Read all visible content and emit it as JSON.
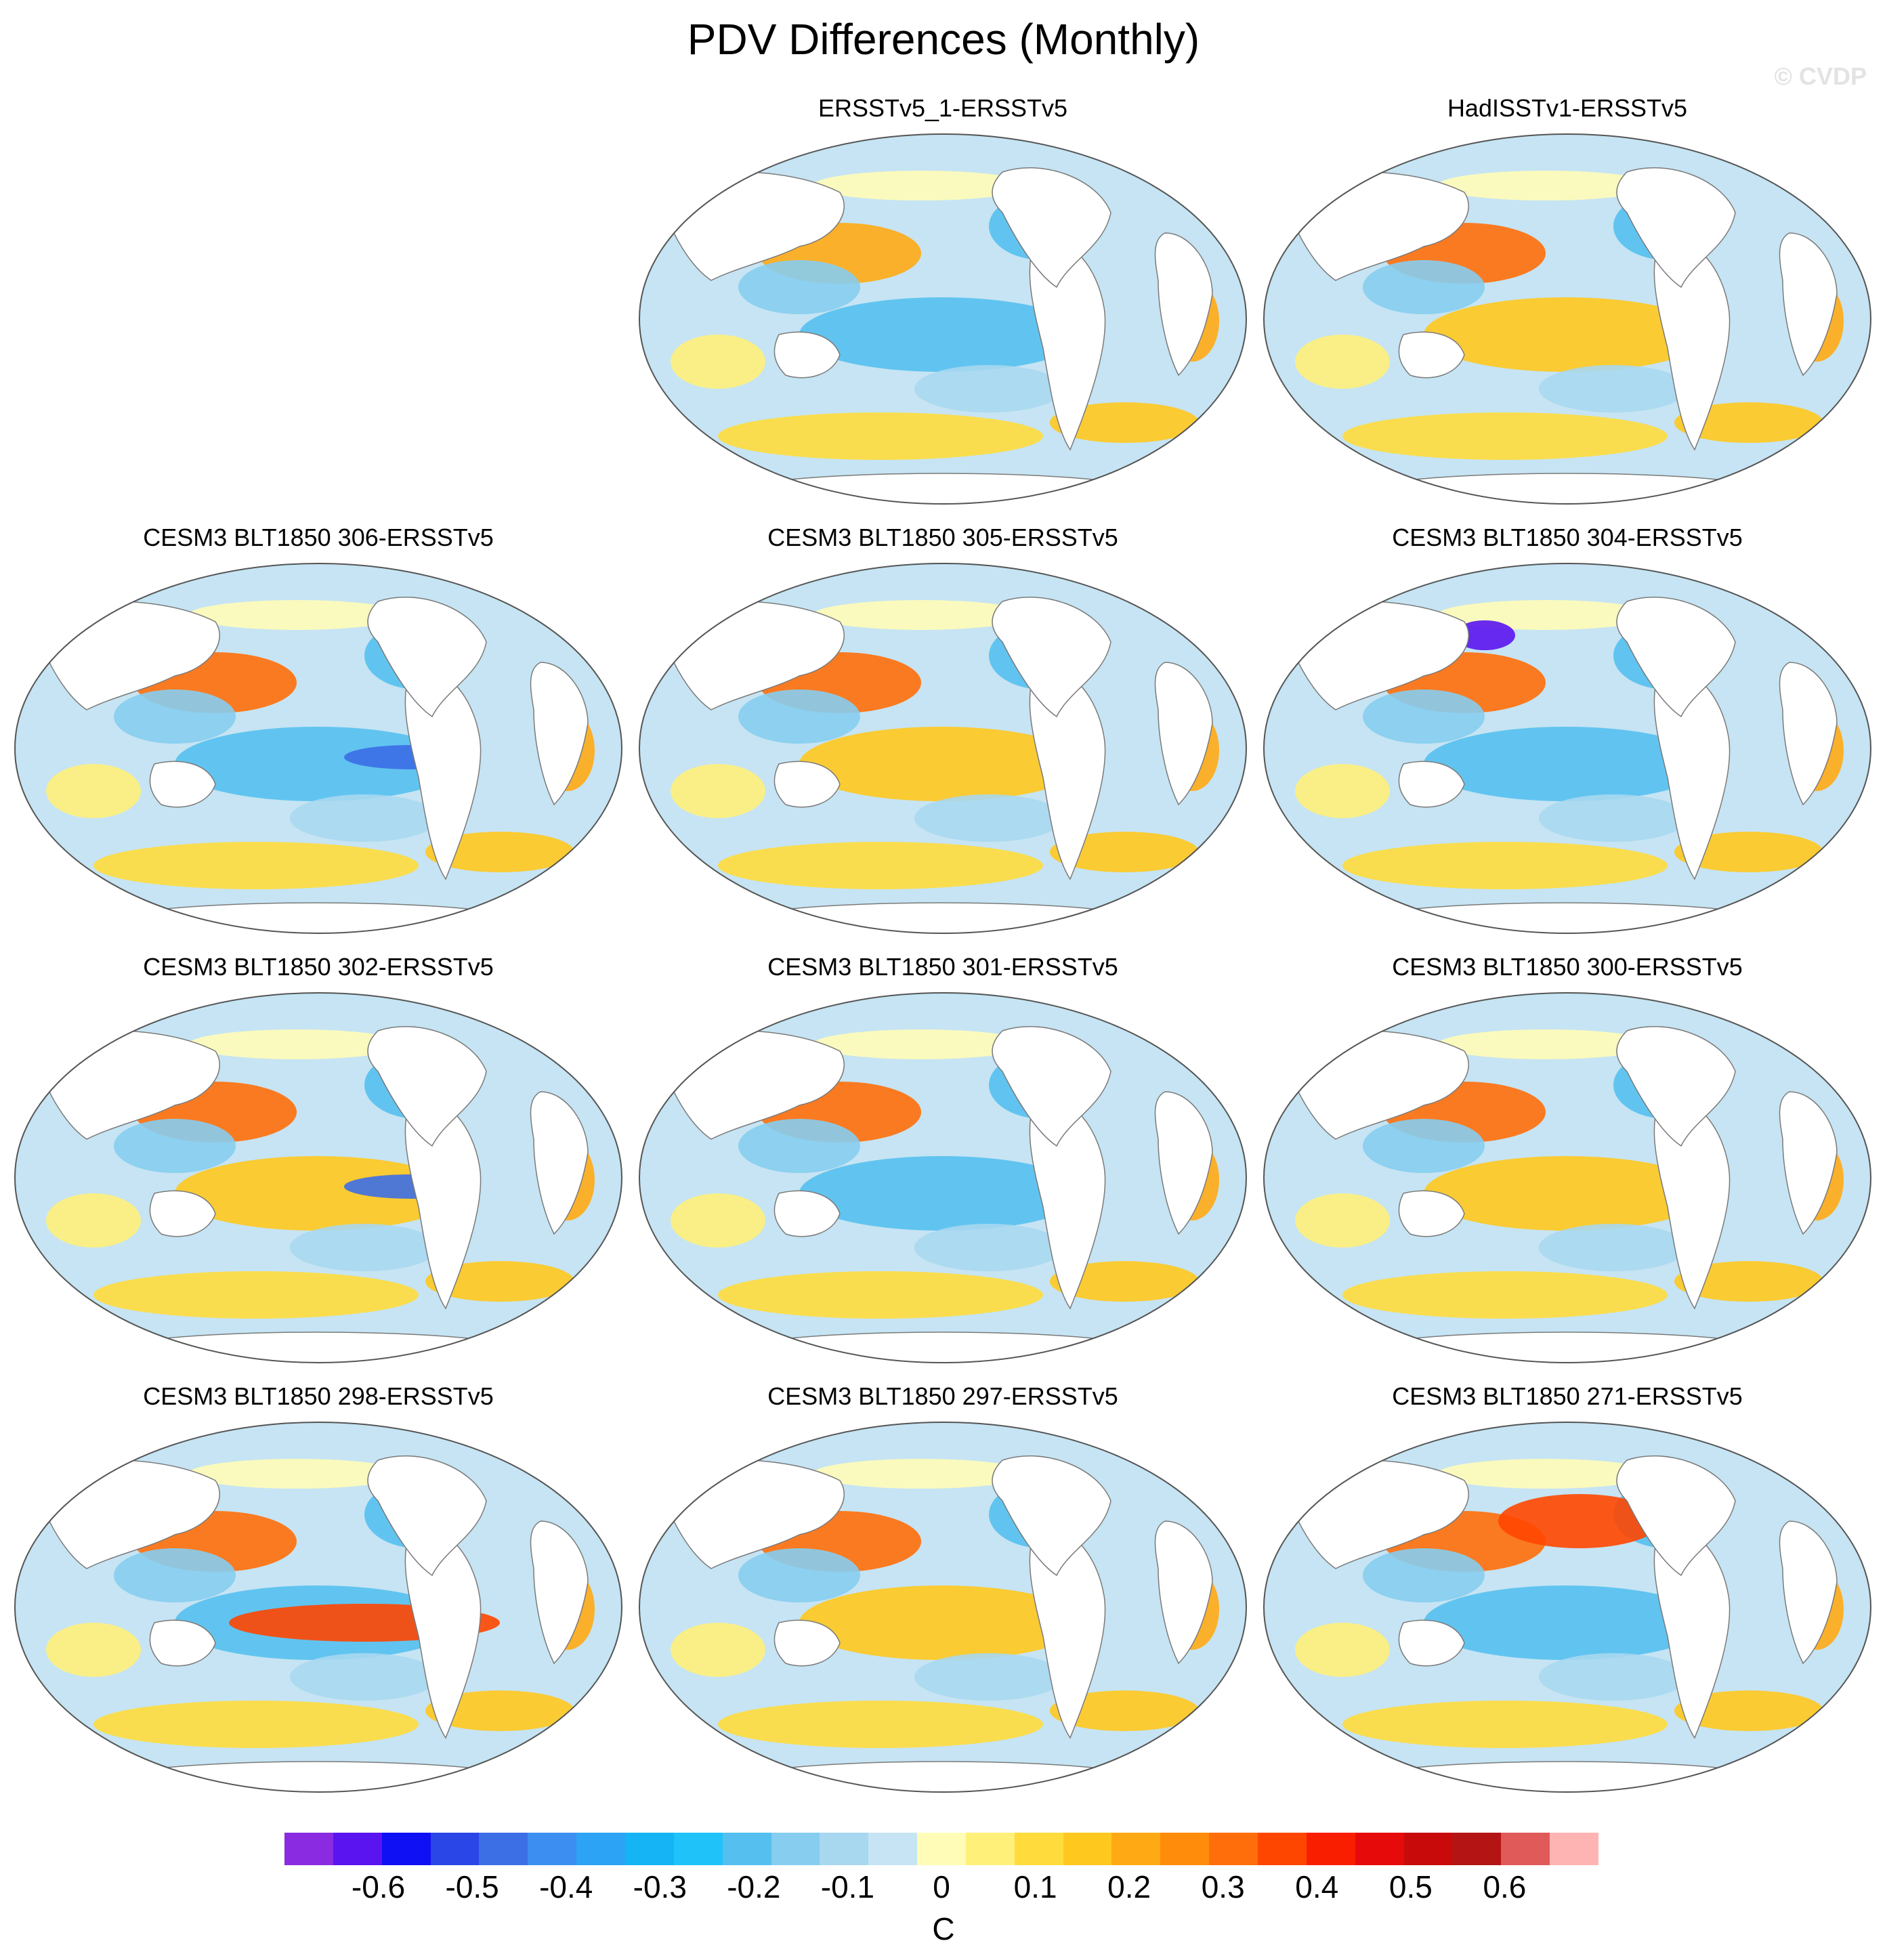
{
  "figure": {
    "title": "PDV Differences (Monthly)",
    "watermark": "© CVDP"
  },
  "panels": [
    {
      "id": "ersstv5_1",
      "title": "ERSSTv5_1-ERSSTv5",
      "warm_index": 0
    },
    {
      "id": "hadisstv1",
      "title": "HadISSTv1-ERSSTv5",
      "warm_index": 1
    },
    {
      "id": "blt306",
      "title": "CESM3 BLT1850 306-ERSSTv5",
      "warm_index": 2
    },
    {
      "id": "blt305",
      "title": "CESM3 BLT1850 305-ERSSTv5",
      "warm_index": 3
    },
    {
      "id": "blt304",
      "title": "CESM3 BLT1850 304-ERSSTv5",
      "warm_index": 4
    },
    {
      "id": "blt302",
      "title": "CESM3 BLT1850 302-ERSSTv5",
      "warm_index": 5
    },
    {
      "id": "blt301",
      "title": "CESM3 BLT1850 301-ERSSTv5",
      "warm_index": 6
    },
    {
      "id": "blt300",
      "title": "CESM3 BLT1850 300-ERSSTv5",
      "warm_index": 7
    },
    {
      "id": "blt298",
      "title": "CESM3 BLT1850 298-ERSSTv5",
      "warm_index": 8
    },
    {
      "id": "blt297",
      "title": "CESM3 BLT1850 297-ERSSTv5",
      "warm_index": 9
    },
    {
      "id": "blt271",
      "title": "CESM3 BLT1850 271-ERSSTv5",
      "warm_index": 10
    }
  ],
  "colorbar": {
    "unit": "C",
    "tick_labels": [
      "-0.6",
      "-0.5",
      "-0.4",
      "-0.3",
      "-0.2",
      "-0.1",
      "0",
      "0.1",
      "0.2",
      "0.3",
      "0.4",
      "0.5",
      "0.6"
    ],
    "tick_values": [
      -0.6,
      -0.5,
      -0.4,
      -0.3,
      -0.2,
      -0.1,
      0,
      0.1,
      0.2,
      0.3,
      0.4,
      0.5,
      0.6
    ],
    "range": [
      -0.7,
      0.7
    ],
    "colors": [
      "#8a2be2",
      "#5a14f0",
      "#1010f5",
      "#2a46e6",
      "#3c6ee6",
      "#3c8ff0",
      "#2ca3f5",
      "#14b4f5",
      "#1fc3fa",
      "#55c0f0",
      "#86cdf0",
      "#a8d8f0",
      "#c6e4f3",
      "#fffcb8",
      "#fff07a",
      "#ffdc3c",
      "#ffc81e",
      "#ffaa14",
      "#ff8c0a",
      "#ff6e0a",
      "#ff4600",
      "#fa1e00",
      "#e60a0a",
      "#c80a0a",
      "#b41414",
      "#e05a5a",
      "#ffb4b4"
    ]
  }
}
